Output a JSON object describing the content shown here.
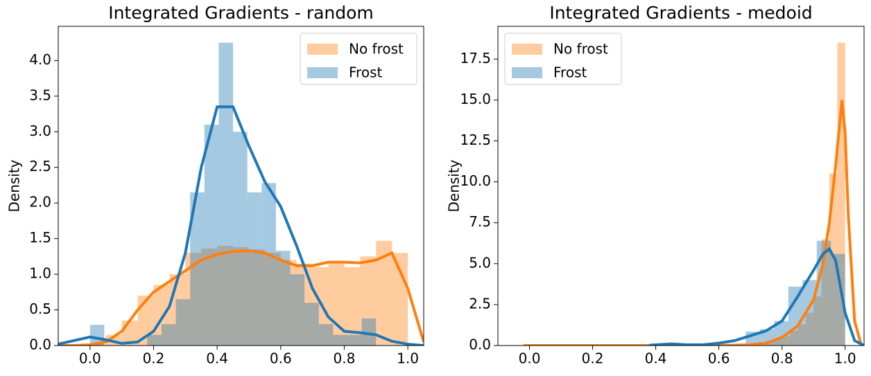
{
  "chart_data": [
    {
      "type": "histogram",
      "title": "Integrated Gradients - random",
      "y_label": "Density",
      "xlim": [
        -0.1,
        1.05
      ],
      "ylim": [
        0,
        4.48
      ],
      "legend": "upper right",
      "xticks": [
        {
          "value": 0,
          "label": "0.0"
        },
        0.2,
        0.4,
        0.6,
        0.8,
        {
          "value": 1,
          "label": "1.0"
        }
      ],
      "yticks": [
        {
          "value": 0,
          "label": "0.0"
        },
        0.5,
        {
          "value": 1,
          "label": "1.0"
        },
        1.5,
        {
          "value": 2,
          "label": "2.0"
        },
        2.5,
        {
          "value": 3,
          "label": "3.0"
        },
        3.5,
        {
          "value": 4,
          "label": "4.0"
        }
      ],
      "series": [
        {
          "name": "No frost",
          "color": "#ff7f0e",
          "bins": [
            0,
            0.05,
            0.1,
            0.15,
            0.2,
            0.25,
            0.3,
            0.35,
            0.4,
            0.45,
            0.5,
            0.55,
            0.6,
            0.65,
            0.7,
            0.75,
            0.8,
            0.85,
            0.9,
            0.95,
            1.0
          ],
          "values": [
            0.02,
            0.15,
            0.35,
            0.7,
            0.85,
            1.0,
            1.3,
            1.36,
            1.4,
            1.38,
            1.35,
            1.3,
            1.2,
            1.15,
            1.1,
            1.15,
            1.1,
            1.25,
            1.47,
            1.3
          ],
          "kde": {
            "x": [
              -0.1,
              -0.05,
              0,
              0.05,
              0.1,
              0.15,
              0.2,
              0.25,
              0.3,
              0.35,
              0.4,
              0.45,
              0.5,
              0.55,
              0.6,
              0.65,
              0.7,
              0.75,
              0.8,
              0.85,
              0.9,
              0.95,
              1.0,
              1.05
            ],
            "values": [
              0,
              0,
              0.01,
              0.05,
              0.2,
              0.5,
              0.75,
              0.9,
              1.05,
              1.2,
              1.28,
              1.32,
              1.33,
              1.3,
              1.2,
              1.12,
              1.12,
              1.17,
              1.17,
              1.16,
              1.2,
              1.3,
              0.8,
              0.05
            ]
          }
        },
        {
          "name": "Frost",
          "color": "#1f77b4",
          "bins": [
            0,
            0.045,
            0.09,
            0.135,
            0.18,
            0.225,
            0.27,
            0.315,
            0.36,
            0.405,
            0.45,
            0.495,
            0.54,
            0.585,
            0.63,
            0.675,
            0.72,
            0.765,
            0.81,
            0.855,
            0.9
          ],
          "values": [
            0.29,
            0,
            0,
            0,
            0.15,
            0.3,
            0.65,
            2.15,
            3.1,
            4.25,
            3.0,
            2.15,
            2.28,
            1.33,
            1.0,
            0.6,
            0.3,
            0.15,
            0.15,
            0.38
          ],
          "kde": {
            "x": [
              -0.1,
              -0.05,
              0,
              0.05,
              0.1,
              0.15,
              0.2,
              0.25,
              0.3,
              0.35,
              0.4,
              0.45,
              0.5,
              0.55,
              0.6,
              0.65,
              0.7,
              0.75,
              0.8,
              0.85,
              0.9,
              0.95,
              1.0,
              1.05
            ],
            "values": [
              0.02,
              0.07,
              0.12,
              0.08,
              0.03,
              0.05,
              0.2,
              0.55,
              1.3,
              2.5,
              3.35,
              3.35,
              2.8,
              2.3,
              1.95,
              1.4,
              0.8,
              0.4,
              0.2,
              0.18,
              0.15,
              0.06,
              0.02,
              0
            ]
          }
        }
      ]
    },
    {
      "type": "histogram",
      "title": "Integrated Gradients - medoid",
      "y_label": "Density",
      "xlim": [
        -0.1,
        1.06
      ],
      "ylim": [
        0,
        19.5
      ],
      "legend": "upper left",
      "xticks": [
        {
          "value": 0,
          "label": "0.0"
        },
        0.2,
        0.4,
        0.6,
        0.8,
        {
          "value": 1,
          "label": "1.0"
        }
      ],
      "yticks": [
        {
          "value": 0,
          "label": "0.0"
        },
        2.5,
        {
          "value": 5,
          "label": "5.0"
        },
        7.5,
        {
          "value": 10,
          "label": "10.0"
        },
        12.5,
        {
          "value": 15,
          "label": "15.0"
        },
        17.5
      ],
      "series": [
        {
          "name": "No frost",
          "color": "#ff7f0e",
          "bins": [
            0.7,
            0.725,
            0.75,
            0.775,
            0.8,
            0.825,
            0.85,
            0.875,
            0.9,
            0.925,
            0.95,
            0.975,
            1.0
          ],
          "values": [
            0.1,
            0.15,
            0.3,
            0.4,
            0.6,
            0.9,
            1.3,
            2.0,
            3.0,
            6.5,
            10.5,
            18.5
          ],
          "kde": {
            "x": [
              -0.02,
              0.6,
              0.7,
              0.75,
              0.8,
              0.85,
              0.9,
              0.93,
              0.95,
              0.97,
              0.99,
              1.0,
              1.01,
              1.03,
              1.05
            ],
            "values": [
              0,
              0,
              0.05,
              0.15,
              0.5,
              1.2,
              2.8,
              5,
              7.5,
              11,
              15,
              13,
              8,
              1.5,
              0.1
            ]
          }
        },
        {
          "name": "Frost",
          "color": "#1f77b4",
          "bins": [
            0.685,
            0.73,
            0.775,
            0.82,
            0.865,
            0.91,
            0.955,
            1.0
          ],
          "values": [
            0.85,
            1.0,
            1.5,
            3.6,
            4.0,
            6.4,
            5.6
          ],
          "kde": {
            "x": [
              0.38,
              0.45,
              0.5,
              0.55,
              0.6,
              0.65,
              0.7,
              0.75,
              0.8,
              0.85,
              0.9,
              0.93,
              0.95,
              0.97,
              1.0,
              1.03,
              1.06
            ],
            "values": [
              0.02,
              0.1,
              0.05,
              0.05,
              0.15,
              0.3,
              0.6,
              0.9,
              1.5,
              3.0,
              4.6,
              5.6,
              5.9,
              5.2,
              2.0,
              0.3,
              0
            ]
          }
        }
      ]
    }
  ]
}
